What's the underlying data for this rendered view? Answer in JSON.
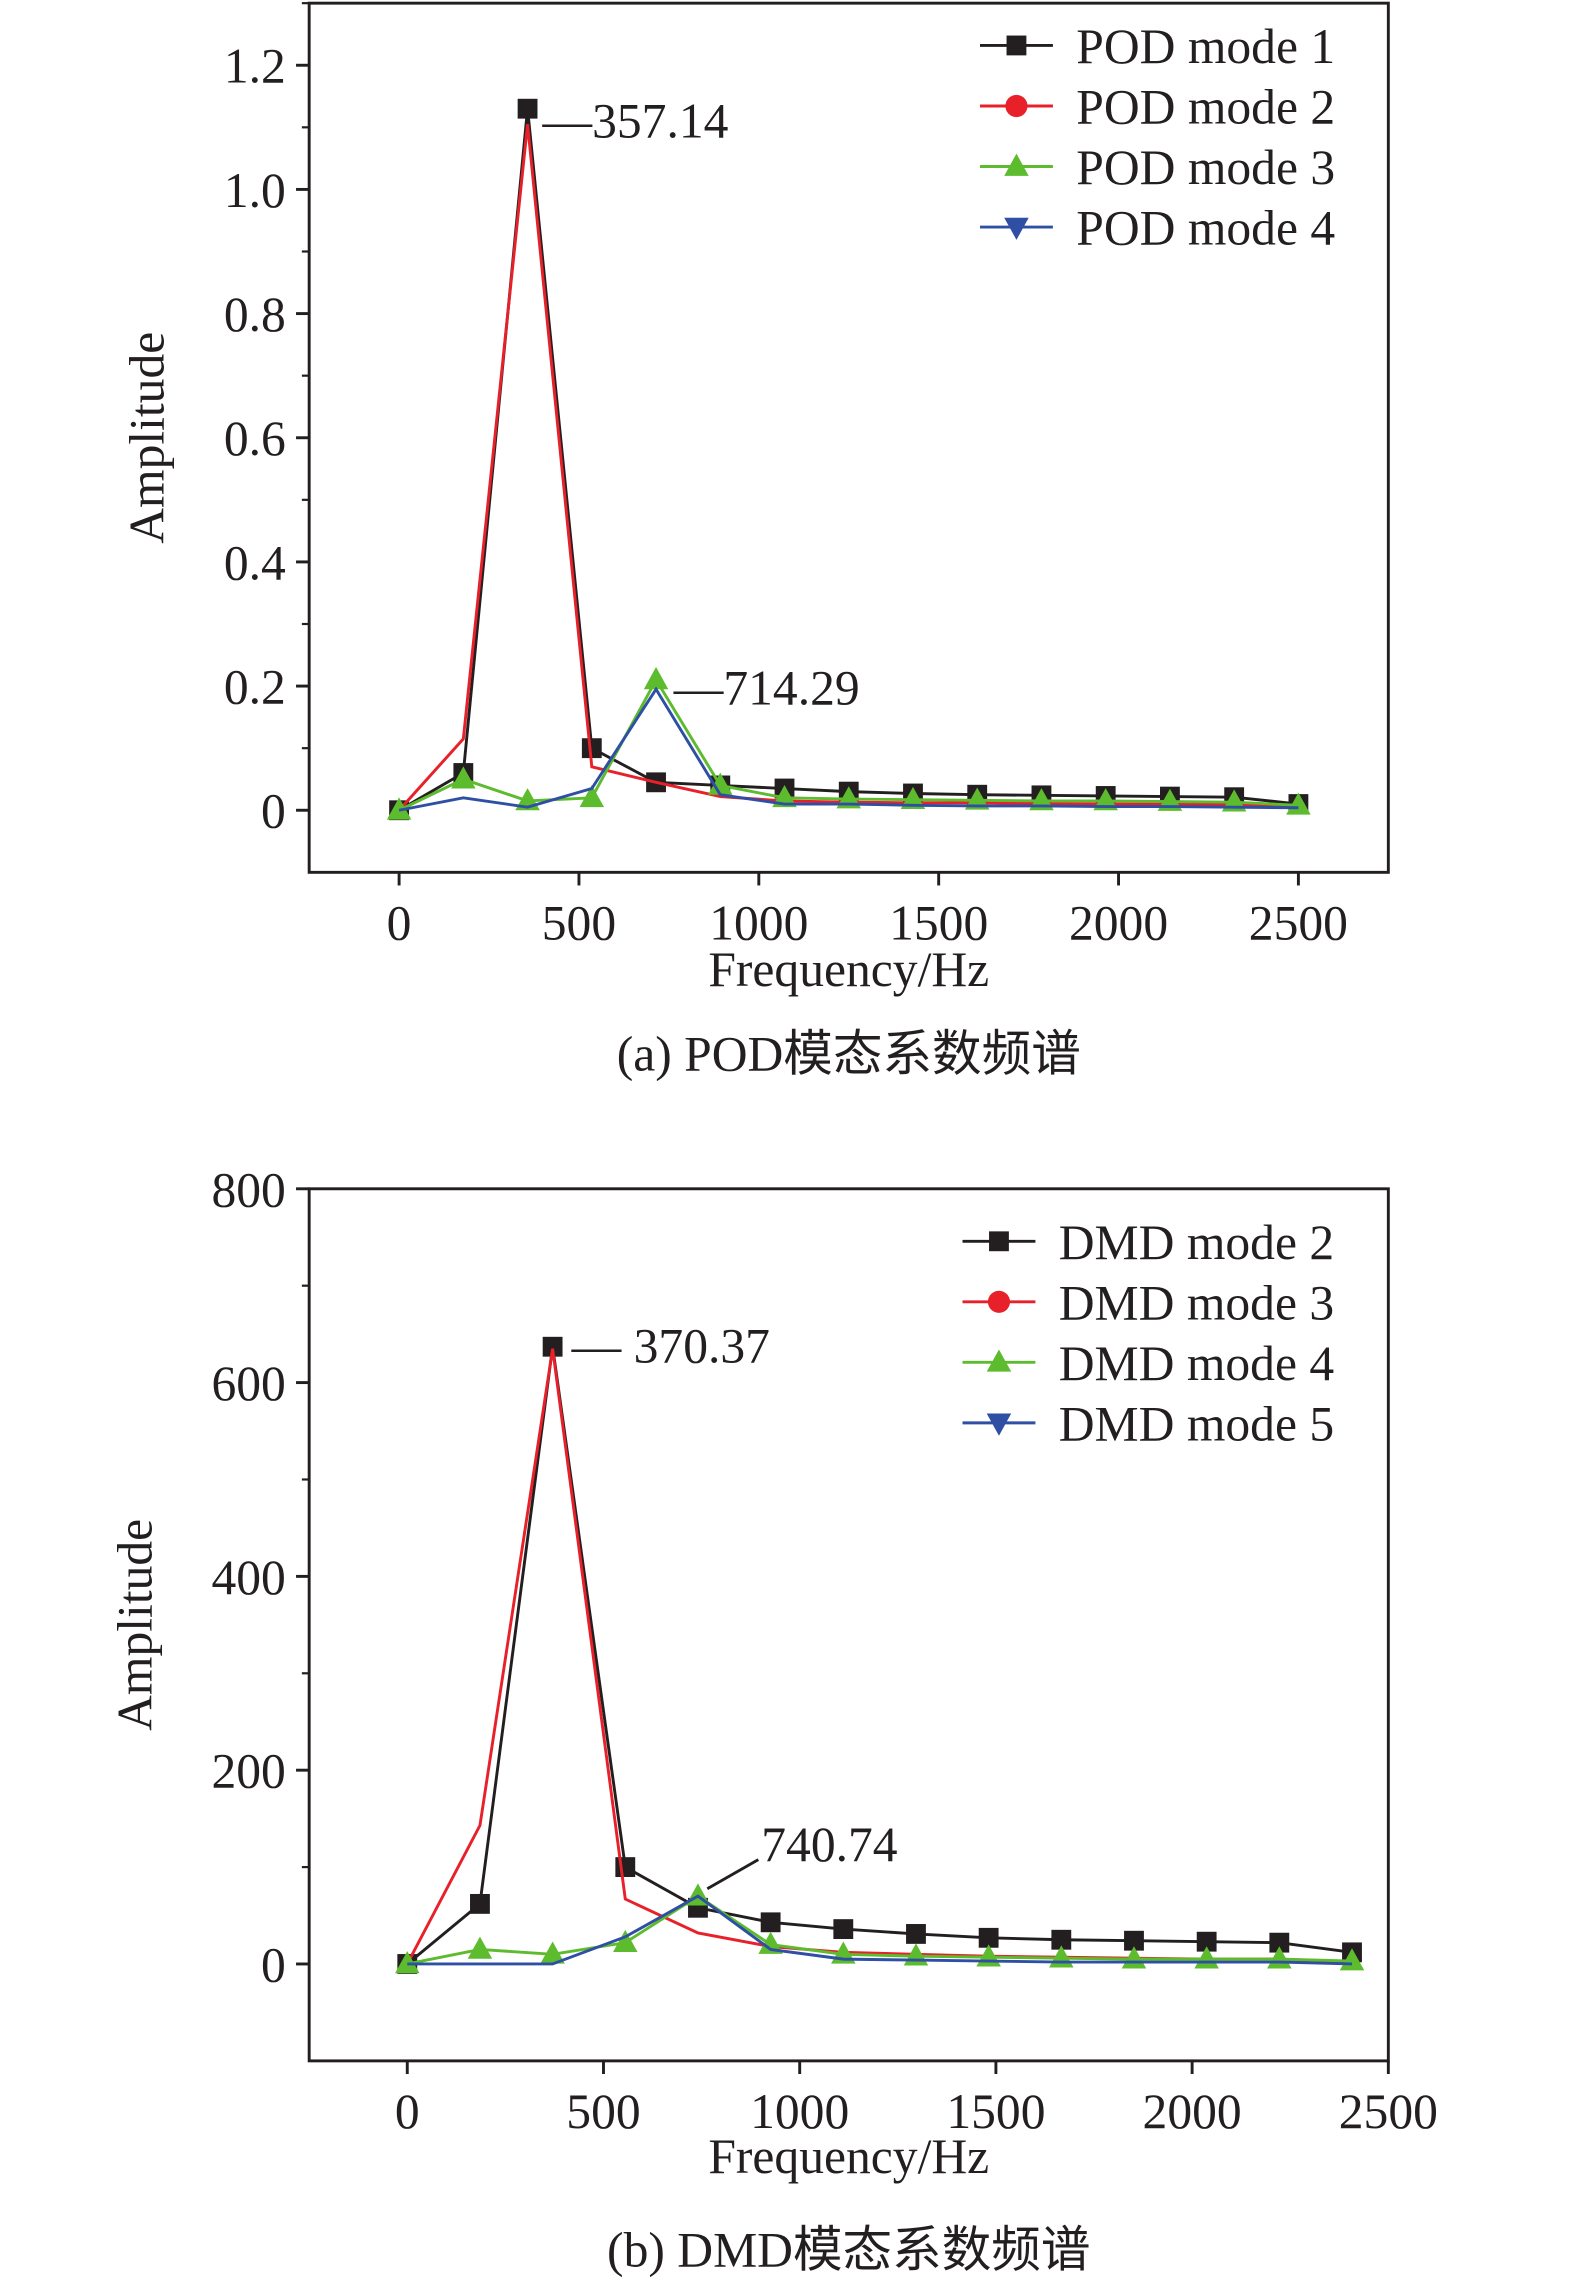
{
  "chart_data": [
    {
      "type": "line",
      "caption": "(a) POD模态系数频谱",
      "xlabel": "Frequency/Hz",
      "ylabel": "Amplitude",
      "xlim": [
        -250,
        2750
      ],
      "ylim": [
        -0.1,
        1.3
      ],
      "xticks": [
        0,
        500,
        1000,
        1500,
        2000,
        2500
      ],
      "xtick_labels": [
        "0",
        "500",
        "1000",
        "1500",
        "2000",
        "2500"
      ],
      "yticks": [
        0,
        0.2,
        0.4,
        0.6,
        0.8,
        1.0,
        1.2
      ],
      "ytick_labels": [
        "0",
        "0.2",
        "0.4",
        "0.6",
        "0.8",
        "1.0",
        "1.2"
      ],
      "legend_position": "top-right",
      "grid": false,
      "x": [
        0,
        178.57,
        357.14,
        535.71,
        714.29,
        892.86,
        1071.43,
        1250,
        1428.57,
        1607.14,
        1785.71,
        1964.29,
        2142.86,
        2321.43,
        2500
      ],
      "series": [
        {
          "name": "POD mode 1",
          "color": "#231f20",
          "marker": "square",
          "values": [
            0,
            0.06,
            1.13,
            0.1,
            0.045,
            0.04,
            0.035,
            0.03,
            0.027,
            0.025,
            0.024,
            0.023,
            0.022,
            0.021,
            0.01
          ]
        },
        {
          "name": "POD mode 2",
          "color": "#e8202a",
          "marker": "circle",
          "values": [
            0,
            0.115,
            1.105,
            0.07,
            0.045,
            0.022,
            0.015,
            0.013,
            0.012,
            0.012,
            0.011,
            0.01,
            0.01,
            0.009,
            0.005
          ]
        },
        {
          "name": "POD mode 3",
          "color": "#5dbb2e",
          "marker": "triangle-up",
          "values": [
            0,
            0.05,
            0.015,
            0.02,
            0.21,
            0.04,
            0.02,
            0.018,
            0.017,
            0.016,
            0.015,
            0.015,
            0.014,
            0.013,
            0.008
          ]
        },
        {
          "name": "POD mode 4",
          "color": "#2e4fa3",
          "marker": "triangle-down",
          "values": [
            0,
            0.02,
            0.005,
            0.035,
            0.195,
            0.025,
            0.01,
            0.01,
            0.008,
            0.007,
            0.007,
            0.006,
            0.006,
            0.005,
            0.004
          ]
        }
      ],
      "annotations": [
        {
          "text": "—357.14",
          "x": 357.14,
          "y": 1.13
        },
        {
          "text": "—714.29",
          "x": 714.29,
          "y": 0.2
        }
      ]
    },
    {
      "type": "line",
      "caption": "(b) DMD模态系数频谱",
      "xlabel": "Frequency/Hz",
      "ylabel": "Amplitude",
      "xlim": [
        -250,
        2500
      ],
      "ylim": [
        -100,
        800
      ],
      "xticks": [
        0,
        500,
        1000,
        1500,
        2000,
        2500
      ],
      "xtick_labels": [
        "0",
        "500",
        "1000",
        "1500",
        "2000",
        "2500"
      ],
      "yticks": [
        0,
        200,
        400,
        600,
        800
      ],
      "ytick_labels": [
        "0",
        "200",
        "400",
        "600",
        "800"
      ],
      "legend_position": "top-right",
      "grid": false,
      "x": [
        0,
        185.19,
        370.37,
        555.56,
        740.74,
        925.93,
        1111.11,
        1296.3,
        1481.48,
        1666.67,
        1851.85,
        2037.04,
        2222.22,
        2407.41
      ],
      "series": [
        {
          "name": "DMD mode 2",
          "color": "#231f20",
          "marker": "square",
          "values": [
            0,
            62,
            637,
            100,
            58,
            43,
            36,
            31,
            27,
            25,
            24,
            23,
            22,
            12
          ]
        },
        {
          "name": "DMD mode 3",
          "color": "#e8202a",
          "marker": "circle",
          "values": [
            0,
            143,
            635,
            67,
            32,
            18,
            12,
            10,
            8,
            7,
            6,
            5,
            5,
            2
          ]
        },
        {
          "name": "DMD mode 4",
          "color": "#5dbb2e",
          "marker": "triangle-up",
          "values": [
            0,
            15,
            10,
            22,
            70,
            20,
            10,
            8,
            7,
            6,
            5,
            5,
            5,
            3
          ]
        },
        {
          "name": "DMD mode 5",
          "color": "#2e4fa3",
          "marker": "triangle-down",
          "values": [
            0,
            0,
            0,
            28,
            70,
            15,
            5,
            4,
            3,
            2,
            2,
            2,
            2,
            0
          ]
        }
      ],
      "annotations": [
        {
          "text": "— 370.37",
          "x": 370.37,
          "y": 637
        },
        {
          "text": "740.74",
          "x": 740.74,
          "y": 70
        }
      ]
    }
  ]
}
